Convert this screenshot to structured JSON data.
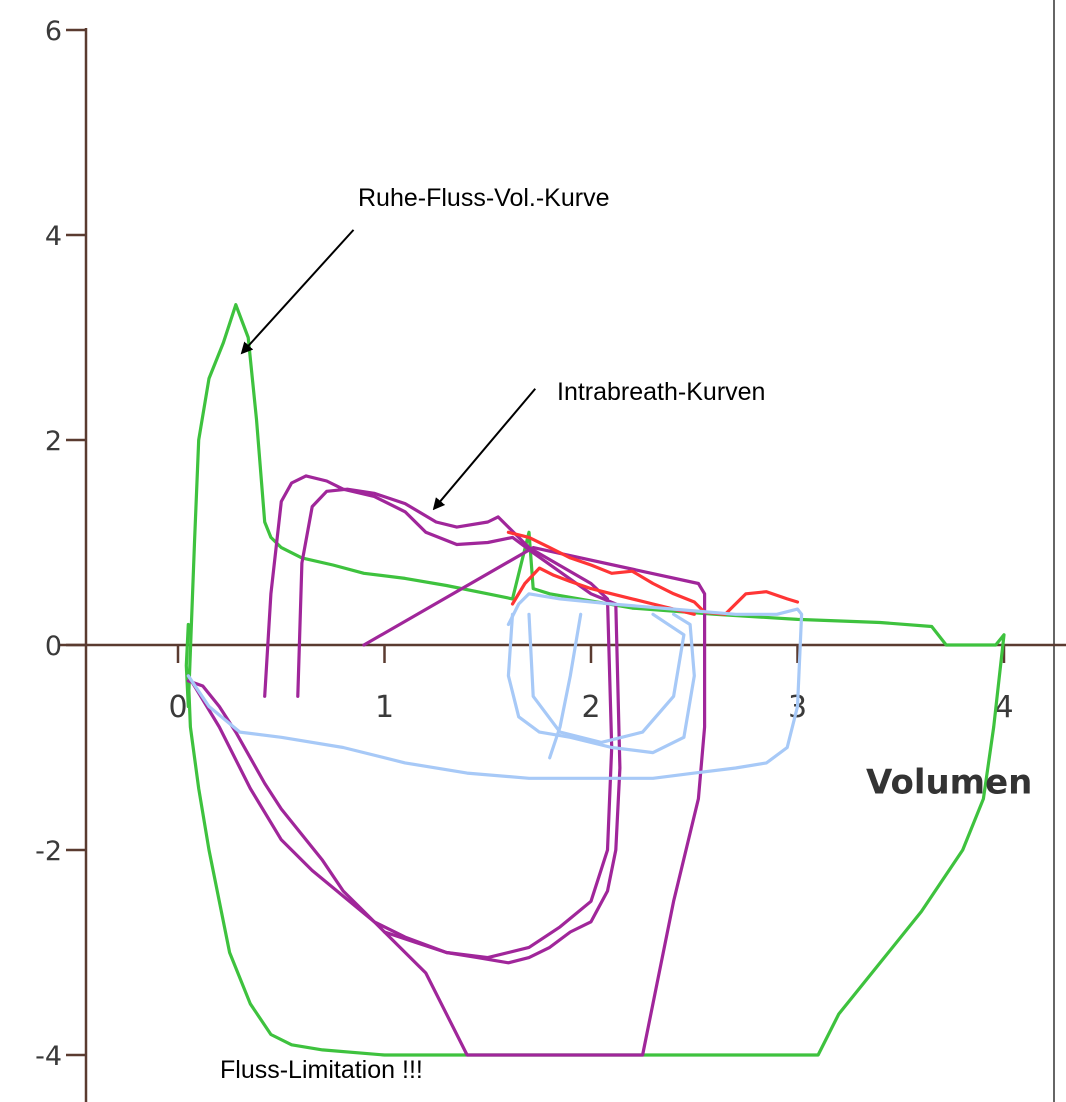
{
  "chart_data": {
    "type": "line",
    "title": "",
    "xlabel": "Volumen",
    "ylabel": "",
    "xlim": [
      -0.85,
      4.3
    ],
    "ylim": [
      -4.4,
      6.2
    ],
    "xticks": [
      0,
      1,
      2,
      3,
      4
    ],
    "xtick_labels": [
      "0",
      "1",
      "2",
      "3",
      "4"
    ],
    "yticks": [
      6,
      4,
      2,
      0,
      -2,
      -4
    ],
    "ytick_labels": [
      "6",
      "4",
      "2",
      "0",
      "-2",
      "-4"
    ],
    "grid": false,
    "annotations": [
      {
        "id": "ruhe",
        "text": "Ruhe-Fluss-Vol.-Kurve",
        "x": 0.85,
        "y": 4.35,
        "arrow_from": [
          0.85,
          4.05
        ],
        "arrow_to": [
          0.31,
          2.85
        ]
      },
      {
        "id": "intra",
        "text": "Intrabreath-Kurven",
        "x": 1.8,
        "y": 2.45,
        "arrow_from": [
          1.73,
          2.5
        ],
        "arrow_to": [
          1.24,
          1.33
        ]
      },
      {
        "id": "limit",
        "text": "Fluss-Limitation !!!",
        "x": 0.2,
        "y": -4.25
      }
    ],
    "series": [
      {
        "color": "#3ec23e",
        "x": [
          0.05,
          0.04,
          0.05,
          0.08,
          0.1,
          0.15,
          0.22,
          0.28,
          0.34,
          0.38,
          0.42,
          0.45,
          0.5,
          0.6,
          0.75,
          0.9,
          1.1,
          1.3,
          1.5,
          1.62,
          1.7,
          1.72,
          1.8,
          2.2,
          2.6,
          3.0,
          3.4,
          3.65,
          3.72,
          3.8,
          3.88,
          3.96,
          4.0,
          3.95,
          3.9,
          3.8,
          3.6,
          3.4,
          3.2,
          3.1,
          2.5,
          1.8,
          1.4,
          1.0,
          0.7,
          0.55,
          0.45,
          0.35,
          0.25,
          0.2,
          0.15,
          0.1,
          0.06,
          0.05
        ],
        "y": [
          0.2,
          -0.2,
          -0.6,
          1.0,
          2.0,
          2.6,
          2.95,
          3.32,
          3.0,
          2.2,
          1.2,
          1.05,
          0.95,
          0.85,
          0.78,
          0.7,
          0.65,
          0.58,
          0.5,
          0.45,
          1.1,
          0.55,
          0.5,
          0.36,
          0.3,
          0.25,
          0.22,
          0.18,
          0.0,
          0.0,
          0.0,
          0.0,
          0.1,
          -0.8,
          -1.5,
          -2.0,
          -2.6,
          -3.1,
          -3.6,
          -4.0,
          -4.0,
          -4.0,
          -4.0,
          -4.0,
          -3.95,
          -3.9,
          -3.8,
          -3.5,
          -3.0,
          -2.5,
          -2.0,
          -1.4,
          -0.8,
          -0.3
        ]
      },
      {
        "color": "#a0269a",
        "x": [
          0.42,
          0.45,
          0.5,
          0.55,
          0.62,
          0.72,
          0.8,
          0.95,
          1.1,
          1.2,
          1.35,
          1.5,
          1.62,
          1.72,
          2.0,
          2.12,
          2.14,
          2.12,
          2.08,
          2.0,
          1.9,
          1.8,
          1.7,
          1.6,
          1.45,
          1.3,
          1.15,
          1.0,
          0.9,
          0.8,
          0.7,
          0.6,
          0.5,
          0.42,
          0.35,
          0.28,
          0.2,
          0.12,
          0.05
        ],
        "y": [
          -0.5,
          0.5,
          1.4,
          1.58,
          1.65,
          1.6,
          1.52,
          1.45,
          1.3,
          1.1,
          0.98,
          1.0,
          1.05,
          0.9,
          0.5,
          0.4,
          -1.2,
          -2.0,
          -2.4,
          -2.7,
          -2.8,
          -2.95,
          -3.05,
          -3.1,
          -3.05,
          -3.0,
          -2.9,
          -2.8,
          -2.6,
          -2.4,
          -2.1,
          -1.85,
          -1.6,
          -1.35,
          -1.1,
          -0.85,
          -0.6,
          -0.4,
          -0.35
        ]
      },
      {
        "color": "#a0269a",
        "x": [
          0.58,
          0.6,
          0.65,
          0.72,
          0.82,
          0.95,
          1.1,
          1.25,
          1.35,
          1.5,
          1.55,
          1.7,
          2.0,
          2.08,
          2.1,
          2.08,
          2.0,
          1.85,
          1.7,
          1.5,
          1.3,
          1.1,
          0.95,
          0.8,
          0.65,
          0.5,
          0.35,
          0.2,
          0.05
        ],
        "y": [
          -0.5,
          0.8,
          1.35,
          1.5,
          1.52,
          1.48,
          1.38,
          1.2,
          1.15,
          1.2,
          1.25,
          0.95,
          0.6,
          0.45,
          -1.0,
          -2.0,
          -2.5,
          -2.75,
          -2.95,
          -3.05,
          -3.0,
          -2.85,
          -2.7,
          -2.45,
          -2.2,
          -1.9,
          -1.4,
          -0.8,
          -0.3
        ]
      },
      {
        "color": "#a0269a",
        "x": [
          0.9,
          1.72,
          2.52,
          2.55,
          2.55,
          2.52,
          2.4,
          2.25,
          1.8,
          1.4,
          1.35,
          1.2,
          1.0
        ],
        "y": [
          0.0,
          0.95,
          0.6,
          0.5,
          -0.8,
          -1.5,
          -2.5,
          -4.0,
          -4.0,
          -4.0,
          -3.8,
          -3.2,
          -2.8
        ]
      },
      {
        "color": "#ff3535",
        "x": [
          1.6,
          1.7,
          1.8,
          1.9,
          2.0,
          2.1,
          2.2,
          2.3,
          2.4,
          2.5,
          2.55,
          2.65,
          2.75,
          2.85,
          2.95,
          3.0
        ],
        "y": [
          1.1,
          1.05,
          0.95,
          0.85,
          0.78,
          0.7,
          0.72,
          0.6,
          0.5,
          0.42,
          0.32,
          0.3,
          0.5,
          0.52,
          0.45,
          0.42
        ]
      },
      {
        "color": "#ff3535",
        "x": [
          1.62,
          1.68,
          1.75,
          1.82,
          1.9,
          2.0,
          2.1,
          2.2,
          2.3,
          2.4,
          2.5
        ],
        "y": [
          0.4,
          0.6,
          0.75,
          0.68,
          0.62,
          0.55,
          0.5,
          0.45,
          0.4,
          0.35,
          0.3
        ]
      },
      {
        "color": "#a7c9f7",
        "x": [
          0.05,
          0.15,
          0.3,
          0.5,
          0.8,
          1.1,
          1.4,
          1.7,
          2.0,
          2.3,
          2.5,
          2.7,
          2.85,
          2.95,
          3.0,
          3.02,
          3.0,
          2.9,
          2.7,
          2.4,
          2.1,
          1.85,
          1.7,
          1.65,
          1.6
        ],
        "y": [
          -0.3,
          -0.6,
          -0.85,
          -0.9,
          -1.0,
          -1.15,
          -1.25,
          -1.3,
          -1.3,
          -1.3,
          -1.25,
          -1.2,
          -1.15,
          -1.0,
          -0.6,
          0.3,
          0.35,
          0.3,
          0.3,
          0.35,
          0.4,
          0.45,
          0.5,
          0.4,
          0.2
        ]
      },
      {
        "color": "#a7c9f7",
        "x": [
          1.62,
          1.6,
          1.65,
          1.75,
          1.9,
          2.1,
          2.3,
          2.45,
          2.5,
          2.48,
          2.4
        ],
        "y": [
          0.3,
          -0.3,
          -0.7,
          -0.85,
          -0.9,
          -1.0,
          -1.05,
          -0.9,
          -0.3,
          0.2,
          0.3
        ]
      },
      {
        "color": "#a7c9f7",
        "x": [
          1.7,
          1.72,
          1.85,
          2.05,
          2.25,
          2.4,
          2.45,
          2.3
        ],
        "y": [
          0.3,
          -0.5,
          -0.85,
          -0.95,
          -0.85,
          -0.5,
          0.1,
          0.3
        ]
      },
      {
        "color": "#a7c9f7",
        "x": [
          1.95,
          1.9,
          1.85,
          1.8
        ],
        "y": [
          0.3,
          -0.3,
          -0.8,
          -1.1
        ]
      }
    ]
  }
}
